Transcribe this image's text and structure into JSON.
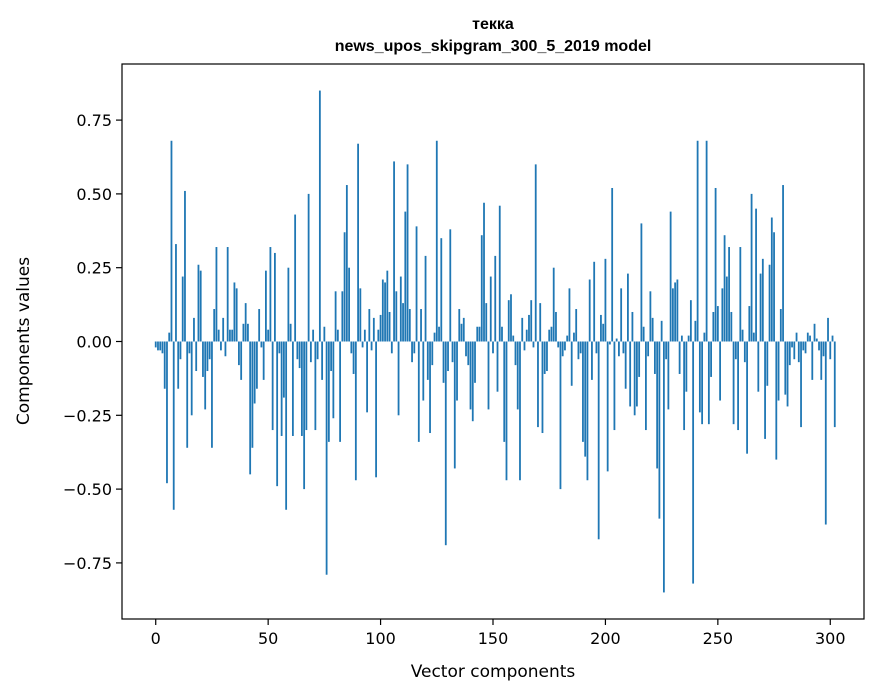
{
  "chart_data": {
    "type": "bar",
    "title": "текка",
    "subtitle": "news_upos_skipgram_300_5_2019 model",
    "xlabel": "Vector components",
    "ylabel": "Components values",
    "xlim": [
      -15,
      315
    ],
    "ylim": [
      -0.94,
      0.94
    ],
    "xticks": [
      {
        "value": 0,
        "label": "0"
      },
      {
        "value": 50,
        "label": "50"
      },
      {
        "value": 100,
        "label": "100"
      },
      {
        "value": 150,
        "label": "150"
      },
      {
        "value": 200,
        "label": "200"
      },
      {
        "value": 250,
        "label": "250"
      },
      {
        "value": 300,
        "label": "300"
      }
    ],
    "yticks": [
      {
        "value": -0.75,
        "label": "−0.75"
      },
      {
        "value": -0.5,
        "label": "−0.50"
      },
      {
        "value": -0.25,
        "label": "−0.25"
      },
      {
        "value": 0,
        "label": "0.00"
      },
      {
        "value": 0.25,
        "label": "0.25"
      },
      {
        "value": 0.5,
        "label": "0.50"
      },
      {
        "value": 0.75,
        "label": "0.75"
      }
    ],
    "bar_color": "#1f77b4",
    "grid": false,
    "values": [
      -0.02,
      -0.03,
      -0.03,
      -0.04,
      -0.16,
      -0.48,
      0.03,
      0.68,
      -0.57,
      0.33,
      -0.16,
      -0.06,
      0.22,
      0.51,
      -0.36,
      -0.04,
      -0.25,
      0.08,
      -0.1,
      0.26,
      0.24,
      -0.12,
      -0.23,
      -0.1,
      -0.06,
      -0.36,
      0.11,
      0.32,
      0.04,
      -0.03,
      0.08,
      -0.05,
      0.32,
      0.04,
      0.04,
      0.2,
      0.18,
      -0.08,
      -0.13,
      0.06,
      0.13,
      0.06,
      -0.45,
      -0.36,
      -0.21,
      -0.16,
      0.11,
      -0.02,
      -0.13,
      0.24,
      0.04,
      0.32,
      -0.3,
      0.3,
      -0.49,
      -0.04,
      -0.32,
      -0.19,
      -0.57,
      0.25,
      0.06,
      -0.32,
      0.43,
      -0.06,
      -0.09,
      -0.32,
      -0.5,
      -0.3,
      0.5,
      -0.07,
      0.04,
      -0.3,
      -0.06,
      0.85,
      -0.13,
      0.05,
      -0.79,
      -0.34,
      -0.1,
      -0.26,
      0.17,
      0.04,
      -0.34,
      0.17,
      0.37,
      0.53,
      0.25,
      -0.04,
      -0.11,
      -0.47,
      0.67,
      0.18,
      -0.02,
      0.04,
      -0.24,
      0.11,
      -0.03,
      0.08,
      -0.46,
      0.04,
      0.09,
      0.21,
      0.2,
      0.24,
      0.1,
      -0.04,
      0.61,
      0.17,
      -0.25,
      0.22,
      0.13,
      0.44,
      0.6,
      0.11,
      -0.07,
      -0.04,
      0.39,
      -0.34,
      0.11,
      -0.2,
      0.29,
      -0.13,
      -0.31,
      -0.08,
      0.03,
      0.68,
      0.05,
      0.35,
      -0.14,
      -0.69,
      -0.1,
      0.38,
      -0.07,
      -0.43,
      -0.2,
      0.11,
      0.06,
      0.08,
      -0.05,
      -0.08,
      -0.23,
      -0.27,
      -0.14,
      0.05,
      0.05,
      0.36,
      0.47,
      0.13,
      -0.23,
      0.22,
      -0.04,
      0.29,
      -0.17,
      0.46,
      0.05,
      -0.34,
      -0.47,
      0.14,
      0.16,
      0.02,
      -0.08,
      -0.23,
      -0.47,
      0.08,
      -0.03,
      0.04,
      0.09,
      0.14,
      -0.02,
      0.6,
      -0.29,
      0.13,
      -0.31,
      -0.11,
      -0.1,
      0.04,
      0.05,
      0.25,
      0.1,
      -0.02,
      -0.5,
      -0.05,
      -0.03,
      0.02,
      0.18,
      -0.15,
      0.03,
      0.11,
      -0.06,
      -0.04,
      -0.34,
      -0.39,
      -0.47,
      0.21,
      -0.13,
      0.27,
      -0.04,
      -0.67,
      0.09,
      0.06,
      0.28,
      -0.44,
      -0.01,
      0.52,
      -0.3,
      0.01,
      -0.05,
      0.18,
      -0.04,
      -0.16,
      0.23,
      -0.22,
      0.1,
      -0.25,
      -0.22,
      -0.12,
      0.4,
      0.05,
      -0.3,
      -0.05,
      0.17,
      0.08,
      -0.11,
      -0.43,
      -0.6,
      0.07,
      -0.85,
      -0.06,
      -0.23,
      0.44,
      0.18,
      0.2,
      0.21,
      -0.11,
      0.02,
      -0.3,
      -0.17,
      0.02,
      0.14,
      -0.82,
      0.07,
      0.68,
      -0.24,
      -0.28,
      0.03,
      0.68,
      -0.28,
      -0.12,
      0.1,
      0.52,
      0.12,
      -0.2,
      0.18,
      0.36,
      0.22,
      0.32,
      0.1,
      -0.28,
      -0.06,
      -0.3,
      0.32,
      0.04,
      -0.07,
      -0.38,
      0.12,
      0.5,
      0.03,
      0.45,
      -0.17,
      0.23,
      0.28,
      -0.33,
      -0.15,
      0.26,
      0.42,
      0.37,
      -0.4,
      -0.2,
      0.11,
      0.53,
      -0.18,
      -0.22,
      -0.08,
      -0.02,
      -0.06,
      0.03,
      -0.07,
      -0.29,
      -0.03,
      -0.04,
      0.03,
      0.02,
      -0.13,
      0.06,
      0.01,
      -0.03,
      -0.13,
      -0.05,
      -0.62,
      0.08,
      -0.06,
      0.02,
      -0.29
    ]
  }
}
